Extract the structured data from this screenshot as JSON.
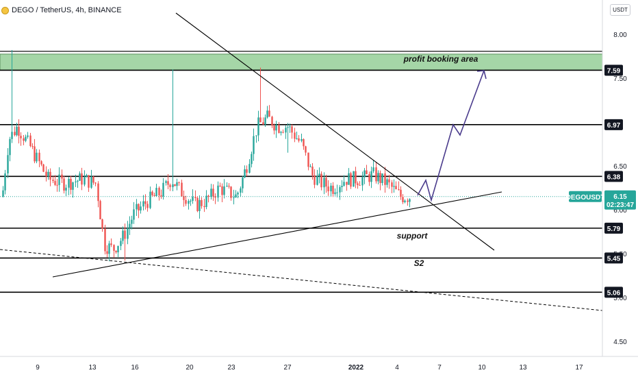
{
  "header": {
    "title": "DEGO / TetherUS, 4h, BINANCE",
    "currency": "USDT"
  },
  "colors": {
    "bull": "#26a69a",
    "bear": "#ef5350",
    "profit_zone": "#a5d6a7",
    "path": "#4a3b8c",
    "last_price": "#26a69a"
  },
  "chart_data": {
    "type": "candlestick",
    "symbol": "DEGOUSDT",
    "last_price": "6.15",
    "countdown": "02:23:47",
    "ylim": [
      4.3,
      8.25
    ],
    "y_ticks": [
      "8.00",
      "7.50",
      "6.50",
      "6.00",
      "5.50",
      "5.00",
      "4.50"
    ],
    "x_ticks": [
      "9",
      "13",
      "16",
      "20",
      "23",
      "27",
      "2022",
      "4",
      "7",
      "10",
      "13",
      "17"
    ],
    "levels": [
      {
        "label": "7.59",
        "value": 7.59
      },
      {
        "label": "6.97",
        "value": 6.97
      },
      {
        "label": "6.38",
        "value": 6.38
      },
      {
        "label": "5.79",
        "value": 5.79
      },
      {
        "label": "5.45",
        "value": 5.45
      },
      {
        "label": "5.06",
        "value": 5.06
      }
    ],
    "profit_zone": {
      "from": 7.59,
      "to": 7.79
    },
    "annotations": {
      "profit": "profit booking area",
      "support": "support",
      "s2": "S2"
    }
  }
}
